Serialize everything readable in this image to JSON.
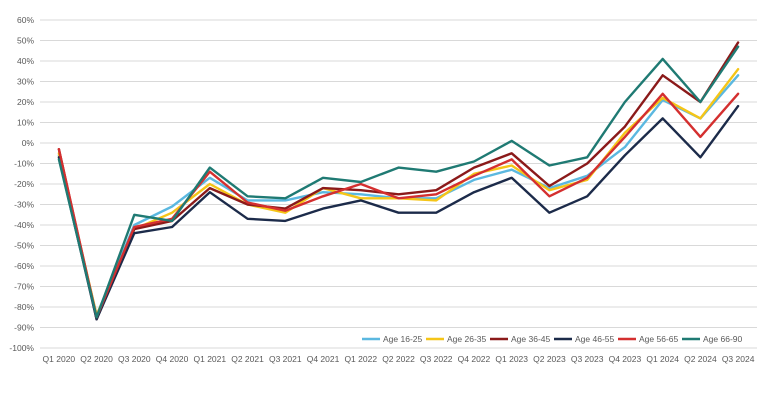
{
  "chart_data": {
    "type": "line",
    "title": "",
    "xlabel": "",
    "ylabel": "",
    "ylim": [
      -100,
      60
    ],
    "y_ticks": [
      60,
      50,
      40,
      30,
      20,
      10,
      0,
      -10,
      -20,
      -30,
      -40,
      -50,
      -60,
      -70,
      -80,
      -90,
      -100
    ],
    "y_tick_labels": [
      "60%",
      "50%",
      "40%",
      "30%",
      "20%",
      "10%",
      "0%",
      "-10%",
      "-20%",
      "-30%",
      "-40%",
      "-50%",
      "-60%",
      "-70%",
      "-80%",
      "-90%",
      "-100%"
    ],
    "grid": true,
    "legend_position": "bottom-right",
    "categories": [
      "Q1 2020",
      "Q2 2020",
      "Q3 2020",
      "Q4 2020",
      "Q1 2021",
      "Q2 2021",
      "Q3 2021",
      "Q4 2021",
      "Q1 2022",
      "Q2 2022",
      "Q3 2022",
      "Q4 2022",
      "Q1 2023",
      "Q2 2023",
      "Q3 2023",
      "Q4 2023",
      "Q1 2024",
      "Q2 2024",
      "Q3 2024"
    ],
    "series": [
      {
        "name": "Age 16-25",
        "color": "#5bb8e0",
        "values": [
          -6,
          -84,
          -40,
          -31,
          -17,
          -28,
          -28,
          -24,
          -25,
          -27,
          -27,
          -18,
          -13,
          -22,
          -16,
          -2,
          21,
          12,
          33
        ]
      },
      {
        "name": "Age 26-35",
        "color": "#f5c518",
        "values": [
          -5,
          -84,
          -42,
          -34,
          -20,
          -30,
          -34,
          -22,
          -27,
          -27,
          -28,
          -15,
          -11,
          -23,
          -18,
          5,
          22,
          12,
          36
        ]
      },
      {
        "name": "Age 36-45",
        "color": "#8b1a1a",
        "values": [
          -3,
          -86,
          -42,
          -38,
          -22,
          -30,
          -32,
          -22,
          -23,
          -25,
          -23,
          -12,
          -5,
          -21,
          -10,
          8,
          33,
          20,
          49
        ]
      },
      {
        "name": "Age 46-55",
        "color": "#1c2b4a",
        "values": [
          -7,
          -86,
          -44,
          -41,
          -24,
          -37,
          -38,
          -32,
          -28,
          -34,
          -34,
          -24,
          -17,
          -34,
          -26,
          -6,
          12,
          -7,
          18
        ]
      },
      {
        "name": "Age 56-65",
        "color": "#d42f2f",
        "values": [
          -3,
          -85,
          -41,
          -37,
          -14,
          -29,
          -33,
          -26,
          -20,
          -27,
          -25,
          -16,
          -8,
          -26,
          -17,
          3,
          24,
          3,
          24
        ]
      },
      {
        "name": "Age 66-90",
        "color": "#1f7a73",
        "values": [
          -8,
          -85,
          -35,
          -38,
          -12,
          -26,
          -27,
          -17,
          -19,
          -12,
          -14,
          -9,
          1,
          -11,
          -7,
          20,
          41,
          20,
          47
        ]
      }
    ]
  }
}
